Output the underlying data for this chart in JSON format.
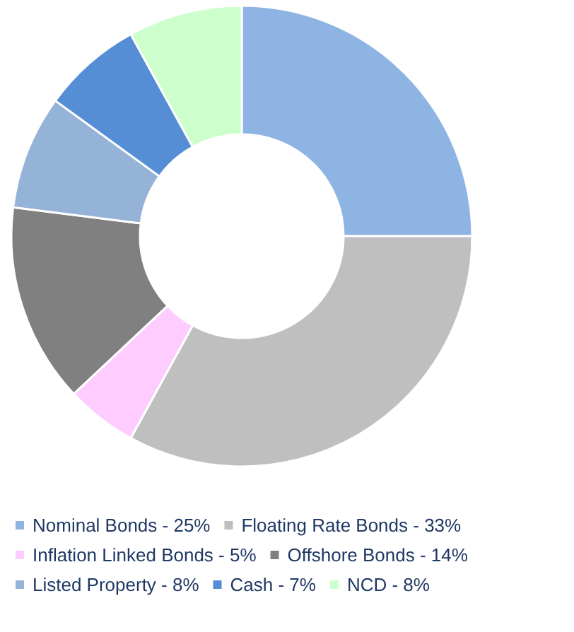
{
  "chart_data": {
    "type": "donut",
    "categories": [
      "Nominal Bonds - 25%",
      "Floating Rate Bonds - 33%",
      "Inflation Linked Bonds - 5%",
      "Offshore Bonds - 14%",
      "Listed Property - 8%",
      "Cash - 7%",
      "NCD - 8%"
    ],
    "values": [
      25,
      33,
      5,
      14,
      8,
      7,
      8
    ],
    "colors": [
      "#8eb4e3",
      "#bfbfbf",
      "#ffccff",
      "#808080",
      "#95b3d7",
      "#558ed5",
      "#ccffcc"
    ],
    "legend": "bottom"
  }
}
